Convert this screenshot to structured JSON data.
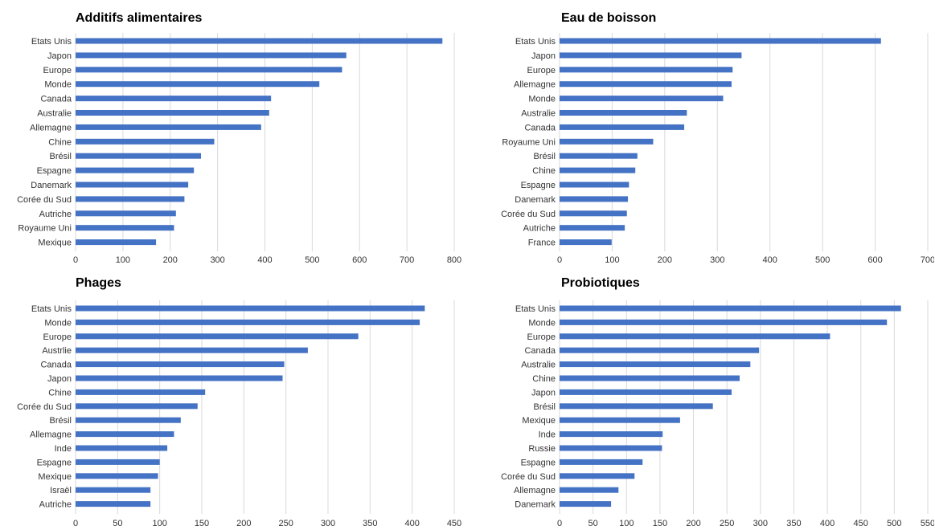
{
  "colors": {
    "bar": "#4472C4",
    "grid": "#d9d9d9",
    "text": "#333333"
  },
  "chart_data": [
    {
      "type": "bar",
      "orientation": "horizontal",
      "title": "Additifs alimentaires",
      "categories": [
        "Etats Unis",
        "Japon",
        "Europe",
        "Monde",
        "Canada",
        "Australie",
        "Allemagne",
        "Chine",
        "Brésil",
        "Espagne",
        "Danemark",
        "Corée du Sud",
        "Autriche",
        "Royaume Uni",
        "Mexique"
      ],
      "values": [
        775,
        572,
        563,
        515,
        413,
        409,
        392,
        293,
        265,
        250,
        238,
        230,
        212,
        208,
        170
      ],
      "xlim": [
        0,
        800
      ],
      "xticks": [
        0,
        100,
        200,
        300,
        400,
        500,
        600,
        700,
        800
      ],
      "grid": true
    },
    {
      "type": "bar",
      "orientation": "horizontal",
      "title": "Eau de boisson",
      "categories": [
        "Etats Unis",
        "Japon",
        "Europe",
        "Allemagne",
        "Monde",
        "Australie",
        "Canada",
        "Royaume Uni",
        "Brésil",
        "Chine",
        "Espagne",
        "Danemark",
        "Corée du Sud",
        "Autriche",
        "France"
      ],
      "values": [
        611,
        346,
        329,
        327,
        311,
        242,
        237,
        178,
        148,
        144,
        132,
        130,
        128,
        124,
        99
      ],
      "xlim": [
        0,
        700
      ],
      "xticks": [
        0,
        100,
        200,
        300,
        400,
        500,
        600,
        700
      ],
      "grid": true
    },
    {
      "type": "bar",
      "orientation": "horizontal",
      "title": "Phages",
      "categories": [
        "Etats Unis",
        "Monde",
        "Europe",
        "Austrlie",
        "Canada",
        "Japon",
        "Chine",
        "Corée du Sud",
        "Brésil",
        "Allemagne",
        "Inde",
        "Espagne",
        "Mexique",
        "Israël",
        "Autriche"
      ],
      "values": [
        415,
        409,
        336,
        276,
        248,
        246,
        154,
        145,
        125,
        117,
        109,
        100,
        98,
        89,
        89
      ],
      "xlim": [
        0,
        450
      ],
      "xticks": [
        0,
        50,
        100,
        150,
        200,
        250,
        300,
        350,
        400,
        450
      ],
      "grid": true
    },
    {
      "type": "bar",
      "orientation": "horizontal",
      "title": "Probiotiques",
      "categories": [
        "Etats Unis",
        "Monde",
        "Europe",
        "Canada",
        "Australie",
        "Chine",
        "Japon",
        "Brésil",
        "Mexique",
        "Inde",
        "Russie",
        "Espagne",
        "Corée du Sud",
        "Allemagne",
        "Danemark"
      ],
      "values": [
        510,
        489,
        404,
        298,
        285,
        269,
        257,
        229,
        180,
        154,
        153,
        124,
        112,
        88,
        77
      ],
      "xlim": [
        0,
        550
      ],
      "xticks": [
        0,
        50,
        100,
        150,
        200,
        250,
        300,
        350,
        400,
        450,
        500,
        550
      ],
      "grid": true
    }
  ]
}
